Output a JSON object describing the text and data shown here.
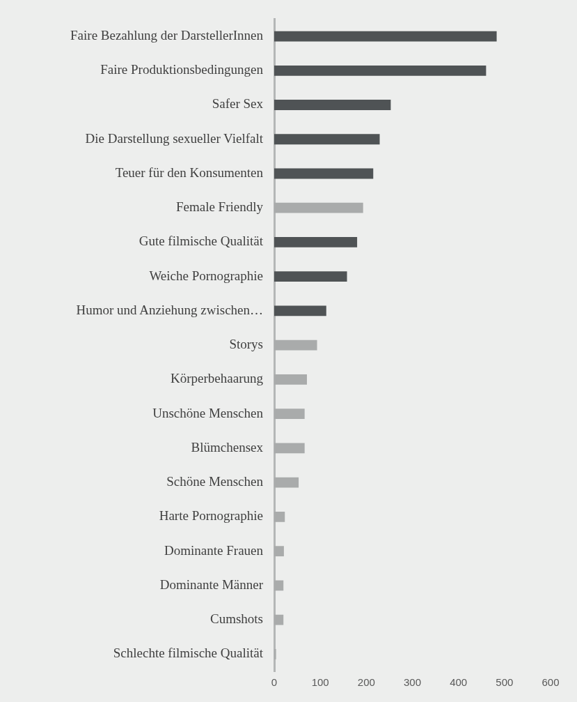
{
  "chart_data": {
    "type": "bar",
    "orientation": "horizontal",
    "categories": [
      "Faire Bezahlung der DarstellerInnen",
      "Faire Produktionsbedingungen",
      "Safer Sex",
      "Die Darstellung sexueller Vielfalt",
      "Teuer für den Konsumenten",
      "Female Friendly",
      "Gute filmische Qualität",
      "Weiche Pornographie",
      "Humor und Anziehung zwischen…",
      "Storys",
      "Körperbehaarung",
      "Unschöne Menschen",
      "Blümchensex",
      "Schöne Menschen",
      "Harte Pornographie",
      "Dominante Frauen",
      "Dominante Männer",
      "Cumshots",
      "Schlechte filmische Qualität"
    ],
    "values": [
      483,
      460,
      253,
      229,
      215,
      193,
      180,
      158,
      113,
      93,
      71,
      66,
      66,
      53,
      23,
      21,
      20,
      20,
      4
    ],
    "colors": [
      "#4f5355",
      "#4f5355",
      "#4f5355",
      "#4f5355",
      "#4f5355",
      "#a9abab",
      "#4f5355",
      "#4f5355",
      "#4f5355",
      "#a9abab",
      "#a9abab",
      "#a9abab",
      "#a9abab",
      "#a9abab",
      "#a9abab",
      "#a9abab",
      "#a9abab",
      "#a9abab",
      "#a9abab"
    ],
    "xlim": [
      0,
      600
    ],
    "xticks": [
      0,
      100,
      200,
      300,
      400,
      500,
      600
    ],
    "grid": false,
    "legend": false
  }
}
